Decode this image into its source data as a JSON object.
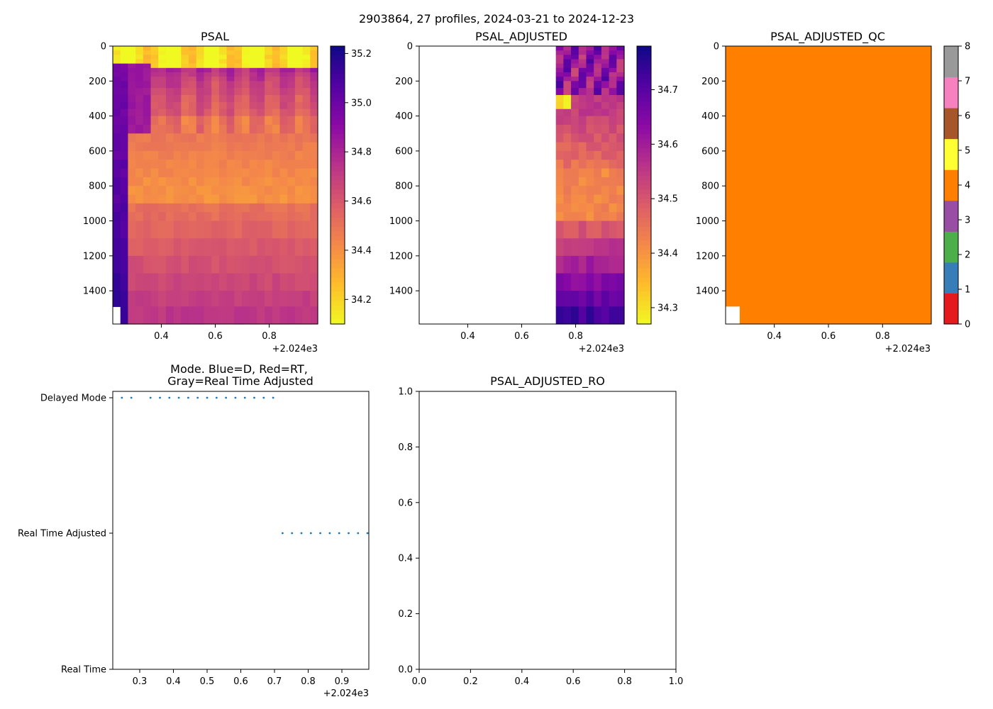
{
  "suptitle": "2903864, 27 profiles, 2024-03-21 to 2024-12-23",
  "offset_label": "+2.024e3",
  "chart_data": [
    {
      "id": "psal",
      "type": "heatmap",
      "title": "PSAL",
      "x_range": [
        0.22,
        0.98
      ],
      "y_range": [
        1590,
        0
      ],
      "x_ticks": [
        0.4,
        0.6,
        0.8
      ],
      "x_tick_labels": [
        "0.4",
        "0.6",
        "0.8"
      ],
      "y_ticks": [
        0,
        200,
        400,
        600,
        800,
        1000,
        1200,
        1400
      ],
      "y_tick_labels": [
        "0",
        "200",
        "400",
        "600",
        "800",
        "1000",
        "1200",
        "1400"
      ],
      "x_offset": "+2.024e3",
      "colormap": "plasma_r",
      "clim": [
        34.1,
        35.23
      ],
      "colorbar_ticks": [
        34.2,
        34.4,
        34.6,
        34.8,
        35.0,
        35.2
      ],
      "colorbar_tick_labels": [
        "34.2",
        "34.4",
        "34.6",
        "34.8",
        "35.0",
        "35.2"
      ]
    },
    {
      "id": "psal_adj",
      "type": "heatmap",
      "title": "PSAL_ADJUSTED",
      "x_range": [
        0.22,
        0.98
      ],
      "y_range": [
        1590,
        0
      ],
      "x_ticks": [
        0.4,
        0.6,
        0.8
      ],
      "x_tick_labels": [
        "0.4",
        "0.6",
        "0.8"
      ],
      "y_ticks": [
        0,
        200,
        400,
        600,
        800,
        1000,
        1200,
        1400
      ],
      "y_tick_labels": [
        "0",
        "200",
        "400",
        "600",
        "800",
        "1000",
        "1200",
        "1400"
      ],
      "x_offset": "+2.024e3",
      "data_x_start": 0.725,
      "colormap": "plasma_r",
      "clim": [
        34.27,
        34.78
      ],
      "colorbar_ticks": [
        34.3,
        34.4,
        34.5,
        34.6,
        34.7
      ],
      "colorbar_tick_labels": [
        "34.3",
        "34.4",
        "34.5",
        "34.6",
        "34.7"
      ]
    },
    {
      "id": "psal_qc",
      "type": "heatmap",
      "title": "PSAL_ADJUSTED_QC",
      "x_range": [
        0.22,
        0.98
      ],
      "y_range": [
        1590,
        0
      ],
      "x_ticks": [
        0.4,
        0.6,
        0.8
      ],
      "x_tick_labels": [
        "0.4",
        "0.6",
        "0.8"
      ],
      "y_ticks": [
        0,
        200,
        400,
        600,
        800,
        1000,
        1200,
        1400
      ],
      "y_tick_labels": [
        "0",
        "200",
        "400",
        "600",
        "800",
        "1000",
        "1200",
        "1400"
      ],
      "x_offset": "+2.024e3",
      "value": 4,
      "fill_color": "#ff7f00",
      "missing_cell": {
        "x_end": 0.272,
        "y_start": 1490
      },
      "colorbar_ticks": [
        0,
        1,
        2,
        3,
        4,
        5,
        6,
        7,
        8
      ],
      "colorbar_tick_labels": [
        "0",
        "1",
        "2",
        "3",
        "4",
        "5",
        "6",
        "7",
        "8"
      ],
      "colorbar_colors": [
        "#e41a1c",
        "#377eb8",
        "#4daf4a",
        "#984ea3",
        "#ff7f00",
        "#ffff33",
        "#a65628",
        "#f781bf",
        "#999999"
      ]
    },
    {
      "id": "mode",
      "type": "scatter",
      "title_line1": "Mode. Blue=D, Red=RT,",
      "title_line2": "Gray=Real Time Adjusted",
      "x_range": [
        0.22,
        0.98
      ],
      "y_categories": [
        "Real Time",
        "Real Time Adjusted",
        "Delayed Mode"
      ],
      "x_ticks": [
        0.3,
        0.4,
        0.5,
        0.6,
        0.7,
        0.8,
        0.9
      ],
      "x_tick_labels": [
        "0.3",
        "0.4",
        "0.5",
        "0.6",
        "0.7",
        "0.8",
        "0.9"
      ],
      "x_offset": "+2.024e3",
      "marker_color": "#1f77b4",
      "series": [
        {
          "name": "Delayed Mode",
          "y": 2,
          "x": [
            0.247,
            0.275,
            0.332,
            0.36,
            0.388,
            0.416,
            0.444,
            0.472,
            0.5,
            0.528,
            0.556,
            0.584,
            0.612,
            0.64,
            0.668,
            0.696
          ]
        },
        {
          "name": "Real Time Adjusted",
          "y": 1,
          "x": [
            0.724,
            0.752,
            0.78,
            0.808,
            0.836,
            0.864,
            0.892,
            0.92,
            0.948,
            0.976
          ]
        }
      ]
    },
    {
      "id": "ro",
      "type": "line",
      "title": "PSAL_ADJUSTED_RO",
      "x_range": [
        0,
        1
      ],
      "y_range": [
        0,
        1
      ],
      "x_ticks": [
        0,
        0.2,
        0.4,
        0.6,
        0.8,
        1.0
      ],
      "x_tick_labels": [
        "0.0",
        "0.2",
        "0.4",
        "0.6",
        "0.8",
        "1.0"
      ],
      "y_ticks": [
        0,
        0.2,
        0.4,
        0.6,
        0.8,
        1.0
      ],
      "y_tick_labels": [
        "0.0",
        "0.2",
        "0.4",
        "0.6",
        "0.8",
        "1.0"
      ],
      "series": []
    }
  ]
}
